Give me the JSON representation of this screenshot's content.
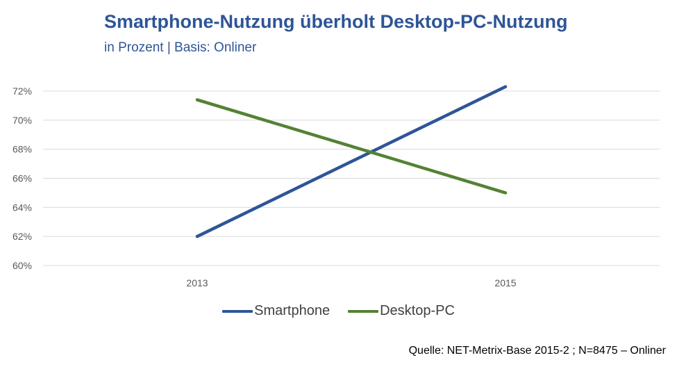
{
  "header": {
    "title": "Smartphone-Nutzung überholt Desktop-PC-Nutzung",
    "subtitle": "in Prozent | Basis: Onliner"
  },
  "chart_data": {
    "type": "line",
    "title": "Smartphone-Nutzung überholt Desktop-PC-Nutzung",
    "subtitle": "in Prozent | Basis: Onliner",
    "categories": [
      "2013",
      "2015"
    ],
    "series": [
      {
        "name": "Smartphone",
        "values": [
          62,
          72.3
        ],
        "color": "#2e5597"
      },
      {
        "name": "Desktop-PC",
        "values": [
          71.4,
          65
        ],
        "color": "#548235"
      }
    ],
    "y_ticks": [
      "60%",
      "62%",
      "64%",
      "66%",
      "68%",
      "70%",
      "72%"
    ],
    "ylim": [
      60,
      72
    ],
    "grid": true,
    "legend_position": "bottom"
  },
  "footer": {
    "source": "Quelle: NET-Metrix-Base 2015-2 ; N=8475 – Onliner"
  }
}
